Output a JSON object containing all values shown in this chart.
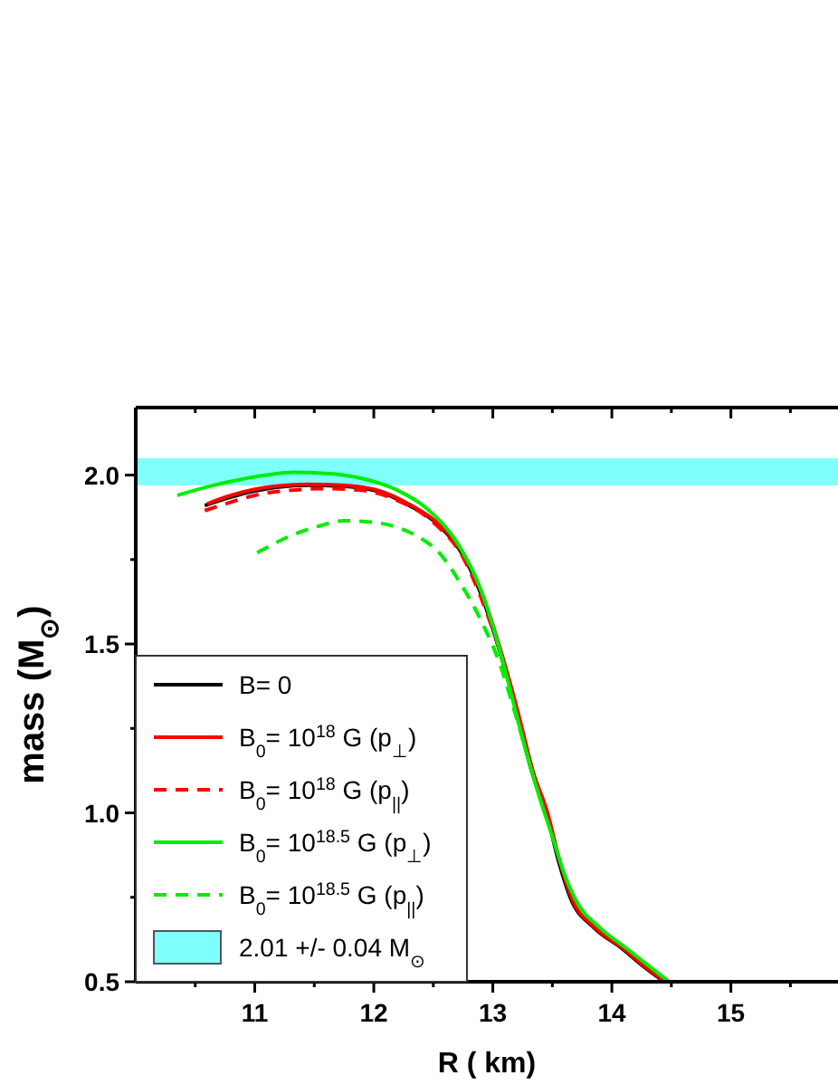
{
  "chart_data": {
    "type": "line",
    "xlabel": "R ( km)",
    "ylabel": "mass (M$_{⊙}$)",
    "xlim": [
      10,
      15.9
    ],
    "ylim": [
      0.5,
      2.2
    ],
    "xticks": [
      {
        "value": 10.5,
        "label": null
      },
      11,
      {
        "value": 11.5,
        "label": null
      },
      12,
      {
        "value": 12.5,
        "label": null
      },
      13,
      {
        "value": 13.5,
        "label": null
      },
      14,
      {
        "value": 14.5,
        "label": null
      },
      15,
      {
        "value": 15.5,
        "label": null
      }
    ],
    "yticks": [
      0.5,
      {
        "value": 0.75,
        "label": null
      },
      {
        "value": 1,
        "label": "1.0"
      },
      {
        "value": 1.25,
        "label": null
      },
      1.5,
      {
        "value": 1.75,
        "label": null
      },
      {
        "value": 2,
        "label": "2.0"
      }
    ],
    "legend": "bottom left",
    "grid": false,
    "series": [
      {
        "name": "B= 0",
        "color": "#000000",
        "line_style": "solid",
        "x": [
          10.58,
          10.8,
          11.0,
          11.2,
          11.45,
          11.7,
          12.0,
          12.3,
          12.55,
          12.77,
          12.93,
          13.04,
          13.2,
          13.33,
          13.45,
          13.55,
          13.65,
          13.85,
          14.08,
          14.25,
          14.44
        ],
        "values": [
          1.91,
          1.935,
          1.953,
          1.965,
          1.97,
          1.968,
          1.955,
          1.91,
          1.85,
          1.75,
          1.62,
          1.5,
          1.3,
          1.12,
          1.0,
          0.86,
          0.75,
          0.66,
          0.6,
          0.55,
          0.5
        ]
      },
      {
        "name": "B$_{0}$= 10$^{18}$ G (p$_{⊥}$)",
        "color": "#ff0000",
        "line_style": "solid",
        "x": [
          10.6,
          10.8,
          11.0,
          11.2,
          11.45,
          11.7,
          12.0,
          12.3,
          12.56,
          12.78,
          12.94,
          13.05,
          13.21,
          13.34,
          13.46,
          13.56,
          13.66,
          13.86,
          14.09,
          14.26,
          14.45
        ],
        "values": [
          1.915,
          1.94,
          1.958,
          1.968,
          1.973,
          1.971,
          1.958,
          1.913,
          1.85,
          1.75,
          1.62,
          1.5,
          1.3,
          1.12,
          1.0,
          0.86,
          0.75,
          0.66,
          0.6,
          0.55,
          0.5
        ]
      },
      {
        "name": "B$_{0}$= 10$^{18}$ G (p$_{||}$)",
        "color": "#ff0000",
        "line_style": "dashed",
        "x": [
          10.58,
          10.8,
          11.0,
          11.3,
          11.6,
          11.9,
          12.2,
          12.5,
          12.76,
          12.92,
          13.04,
          13.2,
          13.33,
          13.45
        ],
        "values": [
          1.895,
          1.92,
          1.94,
          1.955,
          1.96,
          1.955,
          1.925,
          1.86,
          1.75,
          1.62,
          1.5,
          1.3,
          1.12,
          1.0
        ]
      },
      {
        "name": "B$_{0}$= 10$^{18.5}$ G (p$_{⊥}$)",
        "color": "#00ee00",
        "line_style": "solid",
        "x": [
          10.35,
          10.6,
          10.85,
          11.1,
          11.32,
          11.6,
          11.9,
          12.2,
          12.45,
          12.7,
          12.9,
          13.02,
          13.12,
          13.25,
          13.38,
          13.5,
          13.6,
          13.7,
          13.9,
          14.12,
          14.3,
          14.48
        ],
        "values": [
          1.94,
          1.965,
          1.985,
          2.0,
          2.008,
          2.005,
          1.99,
          1.955,
          1.9,
          1.8,
          1.66,
          1.53,
          1.4,
          1.22,
          1.06,
          0.93,
          0.82,
          0.74,
          0.66,
          0.6,
          0.55,
          0.5
        ]
      },
      {
        "name": "B$_{0}$= 10$^{18.5}$ G (p$_{||}$)",
        "color": "#00ee00",
        "line_style": "dashed",
        "x": [
          11.02,
          11.3,
          11.55,
          11.75,
          12.0,
          12.2,
          12.36,
          12.55,
          12.71,
          12.9,
          13.05,
          13.2,
          13.33
        ],
        "values": [
          1.77,
          1.82,
          1.85,
          1.865,
          1.86,
          1.845,
          1.82,
          1.77,
          1.69,
          1.57,
          1.45,
          1.28,
          1.12
        ]
      }
    ],
    "bands": [
      {
        "axis": "y",
        "from": 1.97,
        "to": 2.05,
        "label": "2.01 +/- 0.04 M$_{⊙}$",
        "color": "#80ffff"
      }
    ]
  }
}
